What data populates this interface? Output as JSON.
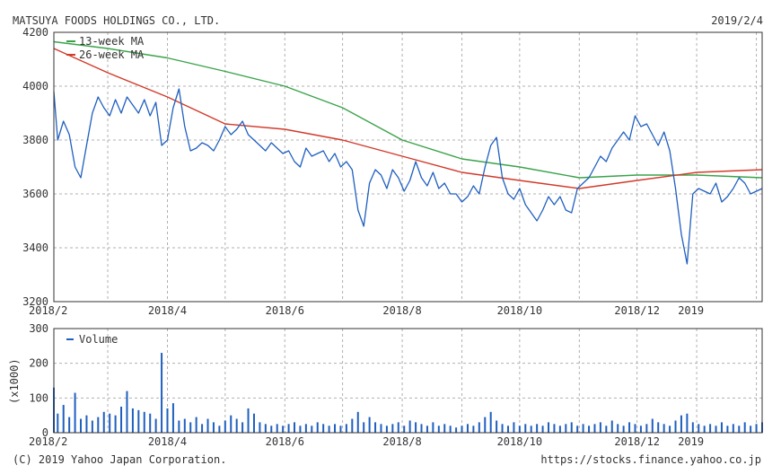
{
  "header": {
    "company": "MATSUYA FOODS HOLDINGS CO., LTD.",
    "date": "2019/2/4"
  },
  "footer": {
    "copyright": "(C) 2019 Yahoo Japan Corporation.",
    "source": "https://stocks.finance.yahoo.co.jp"
  },
  "colors": {
    "price": "#1f5fbf",
    "ma13": "#3aa34a",
    "ma26": "#d23a2a",
    "volume": "#1f5fbf",
    "grid": "#b0b0b0",
    "frame": "#333333"
  },
  "chart_data": [
    {
      "type": "line",
      "title": "",
      "ylim": [
        3200,
        4200
      ],
      "y_ticks": [
        3200,
        3400,
        3600,
        3800,
        4000,
        4200
      ],
      "x_ticks": [
        "2018/2",
        "2018/4",
        "2018/6",
        "2018/8",
        "2018/10",
        "2018/12",
        "2019"
      ],
      "x_tick_dates": [
        "2018-02-01",
        "2018-04-01",
        "2018-06-01",
        "2018-08-01",
        "2018-10-01",
        "2018-12-01",
        "2019-01-01"
      ],
      "x_range": [
        "2018-02-01",
        "2019-02-04"
      ],
      "grid": true,
      "legend": [
        "13-week MA",
        "26-week MA"
      ],
      "legend_position": "top-left",
      "series": [
        {
          "key": "price",
          "x": [
            "2018-02-01",
            "2018-02-03",
            "2018-02-06",
            "2018-02-09",
            "2018-02-12",
            "2018-02-15",
            "2018-02-18",
            "2018-02-21",
            "2018-02-24",
            "2018-02-27",
            "2018-03-02",
            "2018-03-05",
            "2018-03-08",
            "2018-03-11",
            "2018-03-14",
            "2018-03-17",
            "2018-03-20",
            "2018-03-23",
            "2018-03-26",
            "2018-03-29",
            "2018-04-01",
            "2018-04-04",
            "2018-04-07",
            "2018-04-10",
            "2018-04-13",
            "2018-04-16",
            "2018-04-19",
            "2018-04-22",
            "2018-04-25",
            "2018-04-28",
            "2018-05-01",
            "2018-05-04",
            "2018-05-07",
            "2018-05-10",
            "2018-05-13",
            "2018-05-16",
            "2018-05-19",
            "2018-05-22",
            "2018-05-25",
            "2018-05-28",
            "2018-05-31",
            "2018-06-03",
            "2018-06-06",
            "2018-06-09",
            "2018-06-12",
            "2018-06-15",
            "2018-06-18",
            "2018-06-21",
            "2018-06-24",
            "2018-06-27",
            "2018-06-30",
            "2018-07-03",
            "2018-07-06",
            "2018-07-09",
            "2018-07-12",
            "2018-07-15",
            "2018-07-18",
            "2018-07-21",
            "2018-07-24",
            "2018-07-27",
            "2018-07-30",
            "2018-08-02",
            "2018-08-05",
            "2018-08-08",
            "2018-08-11",
            "2018-08-14",
            "2018-08-17",
            "2018-08-20",
            "2018-08-23",
            "2018-08-26",
            "2018-08-29",
            "2018-09-01",
            "2018-09-04",
            "2018-09-07",
            "2018-09-10",
            "2018-09-13",
            "2018-09-16",
            "2018-09-19",
            "2018-09-22",
            "2018-09-25",
            "2018-09-28",
            "2018-10-01",
            "2018-10-04",
            "2018-10-07",
            "2018-10-10",
            "2018-10-13",
            "2018-10-16",
            "2018-10-19",
            "2018-10-22",
            "2018-10-25",
            "2018-10-28",
            "2018-10-31",
            "2018-11-03",
            "2018-11-06",
            "2018-11-09",
            "2018-11-12",
            "2018-11-15",
            "2018-11-18",
            "2018-11-21",
            "2018-11-24",
            "2018-11-27",
            "2018-11-30",
            "2018-12-03",
            "2018-12-06",
            "2018-12-09",
            "2018-12-12",
            "2018-12-15",
            "2018-12-18",
            "2018-12-21",
            "2018-12-24",
            "2018-12-27",
            "2018-12-30",
            "2019-01-02",
            "2019-01-05",
            "2019-01-08",
            "2019-01-11",
            "2019-01-14",
            "2019-01-17",
            "2019-01-20",
            "2019-01-23",
            "2019-01-26",
            "2019-01-29",
            "2019-02-01",
            "2019-02-04"
          ],
          "values": [
            3980,
            3800,
            3870,
            3820,
            3700,
            3660,
            3780,
            3900,
            3960,
            3920,
            3890,
            3950,
            3900,
            3960,
            3930,
            3900,
            3950,
            3890,
            3940,
            3780,
            3800,
            3920,
            3990,
            3850,
            3760,
            3770,
            3790,
            3780,
            3760,
            3800,
            3850,
            3820,
            3840,
            3870,
            3820,
            3800,
            3780,
            3760,
            3790,
            3770,
            3750,
            3760,
            3720,
            3700,
            3770,
            3740,
            3750,
            3760,
            3720,
            3750,
            3700,
            3720,
            3690,
            3540,
            3480,
            3640,
            3690,
            3670,
            3620,
            3690,
            3660,
            3610,
            3650,
            3720,
            3660,
            3630,
            3680,
            3620,
            3640,
            3600,
            3600,
            3570,
            3590,
            3630,
            3600,
            3700,
            3780,
            3810,
            3660,
            3600,
            3580,
            3620,
            3560,
            3530,
            3500,
            3540,
            3590,
            3560,
            3590,
            3540,
            3530,
            3620,
            3640,
            3660,
            3700,
            3740,
            3720,
            3770,
            3800,
            3830,
            3800,
            3890,
            3850,
            3860,
            3820,
            3780,
            3830,
            3760,
            3620,
            3450,
            3340,
            3600,
            3620,
            3610,
            3600,
            3640,
            3570,
            3590,
            3620,
            3660,
            3640,
            3600,
            3610,
            3620
          ]
        },
        {
          "key": "ma13",
          "name": "13-week MA",
          "x": [
            "2018-02-01",
            "2018-03-01",
            "2018-04-01",
            "2018-05-01",
            "2018-06-01",
            "2018-07-01",
            "2018-08-01",
            "2018-09-01",
            "2018-10-01",
            "2018-11-01",
            "2018-12-01",
            "2019-01-01",
            "2019-02-04"
          ],
          "values": [
            4165,
            4140,
            4105,
            4055,
            4000,
            3920,
            3800,
            3730,
            3700,
            3660,
            3670,
            3670,
            3660
          ]
        },
        {
          "key": "ma26",
          "name": "26-week MA",
          "x": [
            "2018-02-01",
            "2018-03-01",
            "2018-04-01",
            "2018-05-01",
            "2018-06-01",
            "2018-07-01",
            "2018-08-01",
            "2018-09-01",
            "2018-10-01",
            "2018-11-01",
            "2018-12-01",
            "2019-01-01",
            "2019-02-04"
          ],
          "values": [
            4140,
            4050,
            3960,
            3860,
            3840,
            3800,
            3740,
            3680,
            3650,
            3620,
            3650,
            3680,
            3690
          ]
        }
      ]
    },
    {
      "type": "bar",
      "title": "",
      "ylabel": "(x1000)",
      "ylim": [
        0,
        300
      ],
      "y_ticks": [
        0,
        100,
        200,
        300
      ],
      "x_ticks": [
        "2018/2",
        "2018/4",
        "2018/6",
        "2018/8",
        "2018/10",
        "2018/12",
        "2019"
      ],
      "x_tick_dates": [
        "2018-02-01",
        "2018-04-01",
        "2018-06-01",
        "2018-08-01",
        "2018-10-01",
        "2018-12-01",
        "2019-01-01"
      ],
      "x_range": [
        "2018-02-01",
        "2019-02-04"
      ],
      "grid": true,
      "legend": [
        "Volume"
      ],
      "legend_position": "top-left",
      "series": [
        {
          "key": "volume",
          "name": "Volume",
          "x": [
            "2018-02-01",
            "2018-02-03",
            "2018-02-06",
            "2018-02-09",
            "2018-02-12",
            "2018-02-15",
            "2018-02-18",
            "2018-02-21",
            "2018-02-24",
            "2018-02-27",
            "2018-03-02",
            "2018-03-05",
            "2018-03-08",
            "2018-03-11",
            "2018-03-14",
            "2018-03-17",
            "2018-03-20",
            "2018-03-23",
            "2018-03-26",
            "2018-03-29",
            "2018-04-01",
            "2018-04-04",
            "2018-04-07",
            "2018-04-10",
            "2018-04-13",
            "2018-04-16",
            "2018-04-19",
            "2018-04-22",
            "2018-04-25",
            "2018-04-28",
            "2018-05-01",
            "2018-05-04",
            "2018-05-07",
            "2018-05-10",
            "2018-05-13",
            "2018-05-16",
            "2018-05-19",
            "2018-05-22",
            "2018-05-25",
            "2018-05-28",
            "2018-05-31",
            "2018-06-03",
            "2018-06-06",
            "2018-06-09",
            "2018-06-12",
            "2018-06-15",
            "2018-06-18",
            "2018-06-21",
            "2018-06-24",
            "2018-06-27",
            "2018-06-30",
            "2018-07-03",
            "2018-07-06",
            "2018-07-09",
            "2018-07-12",
            "2018-07-15",
            "2018-07-18",
            "2018-07-21",
            "2018-07-24",
            "2018-07-27",
            "2018-07-30",
            "2018-08-02",
            "2018-08-05",
            "2018-08-08",
            "2018-08-11",
            "2018-08-14",
            "2018-08-17",
            "2018-08-20",
            "2018-08-23",
            "2018-08-26",
            "2018-08-29",
            "2018-09-01",
            "2018-09-04",
            "2018-09-07",
            "2018-09-10",
            "2018-09-13",
            "2018-09-16",
            "2018-09-19",
            "2018-09-22",
            "2018-09-25",
            "2018-09-28",
            "2018-10-01",
            "2018-10-04",
            "2018-10-07",
            "2018-10-10",
            "2018-10-13",
            "2018-10-16",
            "2018-10-19",
            "2018-10-22",
            "2018-10-25",
            "2018-10-28",
            "2018-10-31",
            "2018-11-03",
            "2018-11-06",
            "2018-11-09",
            "2018-11-12",
            "2018-11-15",
            "2018-11-18",
            "2018-11-21",
            "2018-11-24",
            "2018-11-27",
            "2018-11-30",
            "2018-12-03",
            "2018-12-06",
            "2018-12-09",
            "2018-12-12",
            "2018-12-15",
            "2018-12-18",
            "2018-12-21",
            "2018-12-24",
            "2018-12-27",
            "2018-12-30",
            "2019-01-02",
            "2019-01-05",
            "2019-01-08",
            "2019-01-11",
            "2019-01-14",
            "2019-01-17",
            "2019-01-20",
            "2019-01-23",
            "2019-01-26",
            "2019-01-29",
            "2019-02-01",
            "2019-02-04"
          ],
          "values": [
            130,
            55,
            80,
            45,
            115,
            40,
            50,
            35,
            45,
            60,
            55,
            50,
            75,
            120,
            70,
            65,
            60,
            55,
            40,
            230,
            70,
            85,
            35,
            40,
            30,
            45,
            25,
            40,
            30,
            20,
            35,
            50,
            40,
            30,
            70,
            55,
            30,
            25,
            20,
            25,
            20,
            25,
            30,
            20,
            25,
            20,
            30,
            25,
            20,
            25,
            20,
            25,
            40,
            60,
            30,
            45,
            30,
            25,
            20,
            25,
            30,
            20,
            35,
            30,
            25,
            20,
            30,
            20,
            25,
            20,
            15,
            20,
            25,
            20,
            30,
            45,
            60,
            35,
            25,
            20,
            30,
            20,
            25,
            20,
            25,
            20,
            30,
            25,
            20,
            25,
            30,
            20,
            25,
            20,
            25,
            30,
            20,
            35,
            25,
            20,
            30,
            25,
            20,
            25,
            40,
            30,
            25,
            20,
            35,
            50,
            55,
            30,
            25,
            20,
            25,
            20,
            30,
            20,
            25,
            20,
            30,
            20,
            25,
            30
          ]
        }
      ]
    }
  ]
}
